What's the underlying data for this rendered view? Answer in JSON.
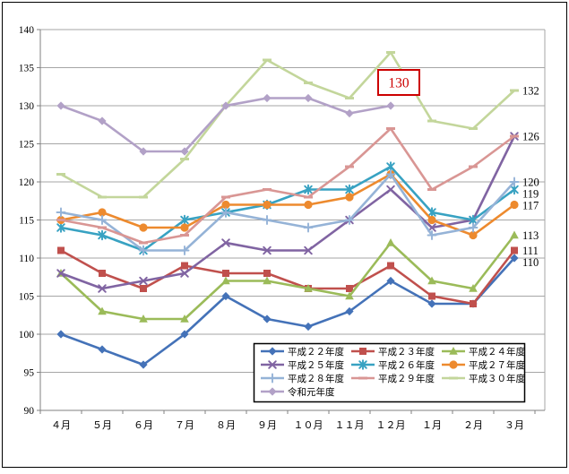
{
  "chart_data": {
    "type": "line",
    "title": "",
    "x_categories": [
      "４月",
      "５月",
      "６月",
      "７月",
      "８月",
      "９月",
      "１０月",
      "１１月",
      "１２月",
      "１月",
      "２月",
      "３月"
    ],
    "y_ticks": [
      "90",
      "95",
      "100",
      "105",
      "110",
      "115",
      "120",
      "125",
      "130",
      "135",
      "140"
    ],
    "ylim": [
      90,
      140
    ],
    "grid": "horizontal",
    "legend_position": "inside-bottom-right",
    "series": [
      {
        "key": "h22",
        "name": "平成２２年度",
        "color": "#4472B8",
        "marker": "diamond",
        "values": [
          100,
          98,
          96,
          100,
          105,
          102,
          101,
          103,
          107,
          104,
          104,
          110
        ]
      },
      {
        "key": "h23",
        "name": "平成２３年度",
        "color": "#C0504D",
        "marker": "square",
        "values": [
          111,
          108,
          106,
          109,
          108,
          108,
          106,
          106,
          109,
          105,
          104,
          111
        ]
      },
      {
        "key": "h24",
        "name": "平成２４年度",
        "color": "#9BBB59",
        "marker": "triangle",
        "values": [
          108,
          103,
          102,
          102,
          107,
          107,
          106,
          105,
          112,
          107,
          106,
          113
        ]
      },
      {
        "key": "h25",
        "name": "平成２５年度",
        "color": "#8064A2",
        "marker": "x",
        "values": [
          108,
          106,
          107,
          108,
          112,
          111,
          111,
          115,
          119,
          114,
          115,
          126
        ]
      },
      {
        "key": "h26",
        "name": "平成２６年度",
        "color": "#38A2C2",
        "marker": "asterisk",
        "values": [
          114,
          113,
          111,
          115,
          116,
          117,
          119,
          119,
          122,
          116,
          115,
          119
        ]
      },
      {
        "key": "h27",
        "name": "平成２７年度",
        "color": "#ED8A2E",
        "marker": "circle",
        "values": [
          115,
          116,
          114,
          114,
          117,
          117,
          117,
          118,
          121,
          115,
          113,
          117
        ]
      },
      {
        "key": "h28",
        "name": "平成２８年度",
        "color": "#95B3D7",
        "marker": "plus",
        "values": [
          116,
          115,
          111,
          111,
          116,
          115,
          114,
          115,
          121,
          113,
          114,
          120
        ]
      },
      {
        "key": "h29",
        "name": "平成２９年度",
        "color": "#D99694",
        "marker": "dash",
        "values": [
          115,
          114,
          112,
          113,
          118,
          119,
          118,
          122,
          127,
          119,
          122,
          126
        ]
      },
      {
        "key": "h30",
        "name": "平成３０年度",
        "color": "#C3D69B",
        "marker": "dash",
        "values": [
          121,
          118,
          118,
          123,
          130,
          136,
          133,
          131,
          137,
          128,
          127,
          132
        ]
      },
      {
        "key": "r1",
        "name": "令和元年度",
        "color": "#B2A1C7",
        "marker": "diamond",
        "values": [
          130,
          128,
          124,
          124,
          130,
          131,
          131,
          129,
          130
        ]
      }
    ],
    "end_labels": [
      {
        "text": "132",
        "value": 132
      },
      {
        "text": "126",
        "value": 126
      },
      {
        "text": "120",
        "value": 120
      },
      {
        "text": "119",
        "value": 119
      },
      {
        "text": "117",
        "value": 117
      },
      {
        "text": "113",
        "value": 113
      },
      {
        "text": "111",
        "value": 111
      },
      {
        "text": "110",
        "value": 110
      }
    ],
    "annotation": {
      "text": "130",
      "color": "#CC0000"
    }
  }
}
